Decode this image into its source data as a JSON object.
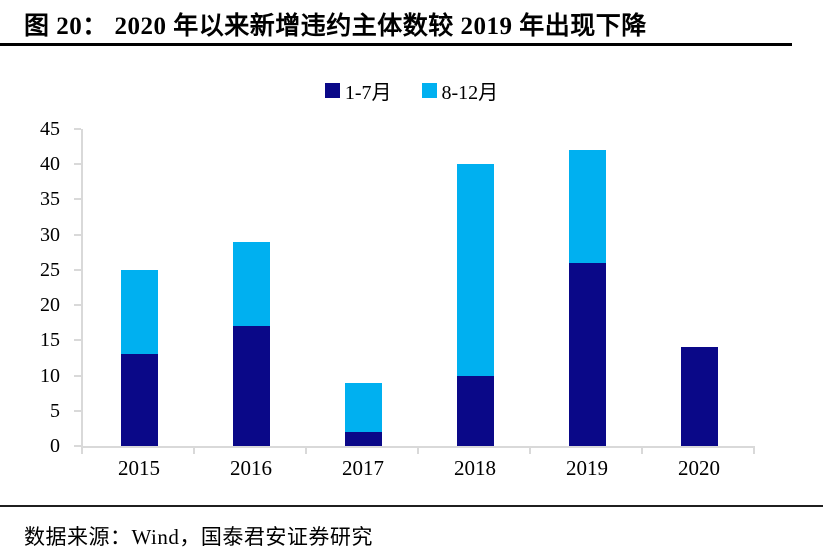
{
  "header": {
    "title": "图 20：  2020 年以来新增违约主体数较 2019 年出现下降"
  },
  "footer": {
    "source": "数据来源：Wind，国泰君安证券研究"
  },
  "colors": {
    "series_dark": "#0a0888",
    "series_light": "#00b0f0",
    "axis": "#d9d9d9",
    "title_rule": "#000000"
  },
  "chart_data": {
    "type": "bar",
    "stacked": true,
    "title": "图 20：2020 年以来新增违约主体数较 2019 年出现下降",
    "categories": [
      "2015",
      "2016",
      "2017",
      "2018",
      "2019",
      "2020"
    ],
    "series": [
      {
        "name": "1-7月",
        "color": "#0a0888",
        "values": [
          13,
          17,
          2,
          10,
          26,
          14
        ]
      },
      {
        "name": "8-12月",
        "color": "#00b0f0",
        "values": [
          12,
          12,
          7,
          30,
          16,
          0
        ]
      }
    ],
    "totals": [
      25,
      29,
      9,
      40,
      42,
      14
    ],
    "xlabel": "",
    "ylabel": "",
    "ylim": [
      0,
      45
    ],
    "ytick_step": 5,
    "ytick_labels": [
      "0",
      "5",
      "10",
      "15",
      "20",
      "25",
      "30",
      "35",
      "40",
      "45"
    ],
    "grid": false,
    "legend_position": "top"
  }
}
